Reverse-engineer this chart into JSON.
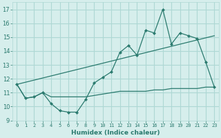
{
  "line1_x": [
    0,
    1,
    2,
    3,
    4,
    5,
    6,
    7,
    8,
    9,
    10,
    11,
    12,
    13,
    14,
    15,
    16,
    17,
    18,
    19,
    20,
    21,
    22,
    23
  ],
  "line1_y": [
    11.6,
    10.6,
    10.7,
    11.0,
    10.2,
    9.7,
    9.6,
    9.6,
    10.5,
    11.7,
    12.1,
    12.5,
    13.9,
    14.4,
    13.7,
    15.5,
    15.3,
    17.0,
    14.5,
    15.3,
    15.1,
    14.9,
    13.2,
    11.4
  ],
  "line2_x": [
    0,
    1,
    2,
    3,
    4,
    5,
    6,
    7,
    8,
    9,
    10,
    11,
    12,
    13,
    14,
    15,
    16,
    17,
    18,
    19,
    20,
    21,
    22,
    23
  ],
  "line2_y": [
    11.6,
    10.6,
    10.7,
    11.0,
    10.7,
    10.7,
    10.7,
    10.7,
    10.7,
    10.8,
    10.9,
    11.0,
    11.1,
    11.1,
    11.1,
    11.1,
    11.2,
    11.2,
    11.3,
    11.3,
    11.3,
    11.3,
    11.4,
    11.4
  ],
  "line3_x": [
    0,
    23
  ],
  "line3_y": [
    11.6,
    15.1
  ],
  "line_color": "#2a7a6e",
  "bg_color": "#d6eeec",
  "grid_color": "#aed8d4",
  "xlabel": "Humidex (Indice chaleur)",
  "xlim": [
    -0.5,
    23.5
  ],
  "ylim": [
    9.0,
    17.5
  ],
  "yticks": [
    9,
    10,
    11,
    12,
    13,
    14,
    15,
    16,
    17
  ],
  "xtick_labels": [
    "0",
    "1",
    "2",
    "3",
    "4",
    "5",
    "6",
    "7",
    "8",
    "9",
    "10",
    "11",
    "12",
    "13",
    "14",
    "15",
    "16",
    "17",
    "18",
    "19",
    "20",
    "21",
    "22",
    "23"
  ]
}
